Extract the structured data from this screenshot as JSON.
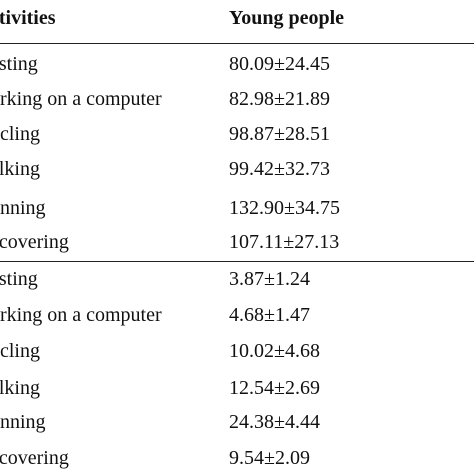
{
  "table": {
    "headers": {
      "activities": "ctivities",
      "young_people": "Young people"
    },
    "section1": [
      {
        "activity": "esting",
        "value": "80.09±24.45"
      },
      {
        "activity": "orking on a computer",
        "value": "82.98±21.89"
      },
      {
        "activity": "ycling",
        "value": "98.87±28.51"
      },
      {
        "activity": "alking",
        "value": "99.42±32.73"
      },
      {
        "activity": "unning",
        "value": "132.90±34.75"
      },
      {
        "activity": "ecovering",
        "value": "107.11±27.13"
      }
    ],
    "section2": [
      {
        "activity": "esting",
        "value": "3.87±1.24"
      },
      {
        "activity": "orking on a computer",
        "value": "4.68±1.47"
      },
      {
        "activity": "ycling",
        "value": "10.02±4.68"
      },
      {
        "activity": "alking",
        "value": "12.54±2.69"
      },
      {
        "activity": "unning",
        "value": "24.38±4.44"
      },
      {
        "activity": "ecovering",
        "value": "9.54±2.09"
      }
    ]
  }
}
